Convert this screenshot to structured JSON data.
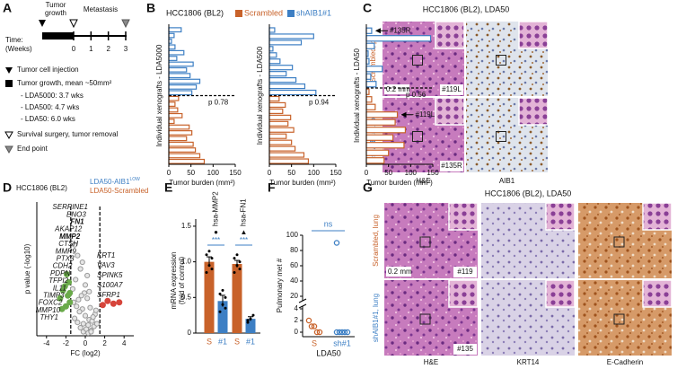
{
  "panel_labels": {
    "a": "A",
    "b": "B",
    "c": "C",
    "d": "D",
    "e": "E",
    "f": "F",
    "g": "G"
  },
  "panel_a": {
    "phase_labels": [
      [
        "Tumor",
        "growth"
      ],
      [
        "Metastasis"
      ]
    ],
    "time_label": [
      "Time:",
      "(Weeks)"
    ],
    "weeks": [
      0,
      1,
      2,
      3
    ],
    "legend": [
      "Tumor cell injection",
      "Tumor growth, mean ~50mm²",
      "- LDA5000: 3.7 wks",
      "- LDA500: 4.7 wks",
      "- LDA50: 6.0 wks",
      "Survival surgery, tumor removal",
      "End point"
    ]
  },
  "panel_c": {
    "title": "HCC1806 (BL2), LDA50",
    "rows": [
      "Scrambled, pT",
      "shAIB1#1, pT"
    ],
    "columns": [
      "H&E",
      "AIB1"
    ],
    "scale_bar": "0.2 mm",
    "sample_ids": [
      "#119L",
      "#135R"
    ]
  },
  "panel_g": {
    "title": "HCC1806 (BL2), LDA50",
    "rows": [
      "Scrambled, lung",
      "shAIB1#1, lung"
    ],
    "columns": [
      "H&E",
      "KRT14",
      "E-Cadherin"
    ],
    "scale_bar": "0.2 mm",
    "sample_ids": [
      "#119",
      "#135"
    ]
  },
  "chart_data": [
    {
      "type": "barh",
      "title": "HCC1806 (BL2)",
      "ylabel": "Individual xenografts - LDA5000",
      "xlabel": "Tumor burden (mm²)",
      "xlim": [
        0,
        150
      ],
      "xticks": [
        0,
        50,
        100,
        150
      ],
      "series": [
        {
          "name": "Scrambled",
          "color": "#c8622a",
          "values": [
            22,
            14,
            20,
            30,
            12,
            46,
            52,
            40,
            55,
            60,
            70,
            80
          ]
        },
        {
          "name": "shAIB1#1",
          "color": "#3d7fc4",
          "values": [
            28,
            12,
            6,
            14,
            34,
            18,
            55,
            40,
            48,
            70,
            62,
            52
          ]
        }
      ],
      "annotation": "p 0.78"
    },
    {
      "type": "barh",
      "ylabel": "Individual xenografts - LDA500",
      "xlabel": "Tumor burden (mm²)",
      "xlim": [
        0,
        150
      ],
      "xticks": [
        0,
        50,
        100,
        150
      ],
      "series": [
        {
          "color": "#c8622a",
          "values": [
            22,
            36,
            30,
            48,
            42,
            55,
            38,
            50,
            58,
            78,
            88
          ]
        },
        {
          "color": "#3d7fc4",
          "values": [
            12,
            100,
            72,
            8,
            16,
            24,
            52,
            38,
            60,
            80,
            105
          ]
        }
      ],
      "annotation": "p 0.94"
    },
    {
      "type": "barh",
      "ylabel": "Individual xenografts - LDA50",
      "xlabel": "Tumor burden (mm²)",
      "xlim": [
        0,
        150
      ],
      "xticks": [
        0,
        50,
        100,
        150
      ],
      "series": [
        {
          "color": "#c8622a",
          "values": [
            6,
            12,
            20,
            70,
            65,
            88,
            60,
            85,
            50,
            40
          ]
        },
        {
          "color": "#3d7fc4",
          "values": [
            12,
            145,
            18,
            4,
            6,
            36,
            10,
            22
          ]
        }
      ],
      "annotation": "p 0.56",
      "callouts": [
        "#135R",
        "#119L"
      ]
    },
    {
      "type": "scatter",
      "title": "HCC1806 (BL2)",
      "legend_labels": [
        {
          "text": "LDA50-AIB1",
          "superscript": "LOW",
          "color": "#3d7fc4"
        },
        {
          "text": "LDA50-Scrambled",
          "color": "#c8622a"
        }
      ],
      "xlabel": "FC (log2)",
      "ylabel": "p value (-log10)",
      "xlim": [
        -5,
        5
      ],
      "xticks": [
        -4,
        -2,
        0,
        2,
        4
      ],
      "ylim": [
        0,
        10
      ],
      "fc_cutoffs": [
        -1.5,
        1.5
      ],
      "series": [
        {
          "color": "#9a9a9a",
          "x": [
            -0.2,
            0.1,
            0.3,
            -0.5,
            0.6,
            -0.8,
            0.9,
            -1.1,
            1.2,
            0.0,
            -0.3,
            0.4,
            -0.6,
            0.7,
            -0.9,
            1.0,
            -1.2,
            0.2,
            -0.1,
            0.5,
            -0.4,
            0.8,
            -0.7,
            1.1,
            -1.3,
            0.3,
            -0.2,
            0.6,
            -1.0,
            0.0,
            -0.5,
            -0.8,
            -0.3,
            0.2,
            -1.1,
            0.4
          ],
          "y": [
            0.3,
            0.5,
            0.8,
            0.6,
            0.4,
            1.0,
            0.7,
            1.3,
            0.9,
            1.5,
            2.0,
            1.2,
            1.8,
            1.1,
            2.2,
            1.6,
            2.5,
            2.8,
            3.2,
            2.1,
            3.0,
            1.4,
            2.7,
            1.9,
            3.5,
            0.2,
            0.9,
            0.3,
            4.2,
            3.8,
            5.0,
            6.0,
            5.5,
            4.5,
            6.8,
            3.3
          ]
        },
        {
          "color": "#6aaa4a",
          "x": [
            -1.6,
            -1.8,
            -2.0,
            -2.3,
            -1.7,
            -2.6,
            -1.9,
            -2.1,
            -1.6,
            -2.4
          ],
          "y": [
            2.5,
            3.0,
            2.2,
            3.4,
            4.0,
            2.8,
            4.6,
            3.7,
            3.2,
            2.0
          ]
        },
        {
          "color": "#d6453b",
          "x": [
            1.8,
            2.3,
            2.9,
            3.5
          ],
          "y": [
            2.3,
            2.6,
            2.4,
            2.5
          ]
        }
      ],
      "genes_down": [
        {
          "name": "SERPINE1"
        },
        {
          "name": "ENO3"
        },
        {
          "name": "FN1",
          "bold": true
        },
        {
          "name": "AKAP12"
        },
        {
          "name": "MMP2",
          "bold": true
        },
        {
          "name": "CTSH"
        },
        {
          "name": "MMP9"
        },
        {
          "name": "PTX3"
        },
        {
          "name": "CDH2"
        },
        {
          "name": "PDPN"
        },
        {
          "name": "TFPI2"
        },
        {
          "name": "IL11"
        },
        {
          "name": "TIMP3"
        },
        {
          "name": "FOXC2"
        },
        {
          "name": "MMP10"
        },
        {
          "name": "THY1"
        }
      ],
      "genes_up": [
        {
          "name": "KRT1"
        },
        {
          "name": "VAV3"
        },
        {
          "name": "SPINK5"
        },
        {
          "name": "S100A7"
        },
        {
          "name": "SFRP1"
        }
      ]
    },
    {
      "type": "bar",
      "categories": [
        "S",
        "#1",
        "S",
        "#1"
      ],
      "colors": [
        "#c8622a",
        "#3d7fc4",
        "#c8622a",
        "#3d7fc4"
      ],
      "values": [
        1.0,
        0.45,
        0.97,
        0.2
      ],
      "errors": [
        0.07,
        0.08,
        0.05,
        0.03
      ],
      "points": [
        [
          0.85,
          0.95,
          1.05,
          1.1,
          1.15,
          0.9
        ],
        [
          0.3,
          0.4,
          0.5,
          0.55,
          0.6,
          0.35
        ],
        [
          0.85,
          0.95,
          1.0,
          1.05,
          1.1,
          0.9
        ],
        [
          0.15,
          0.2,
          0.25,
          0.18
        ]
      ],
      "ylim": [
        0,
        1.6
      ],
      "yticks": [
        0,
        0.5,
        {
          "value": 1,
          "label": "1.0"
        },
        1.5
      ],
      "ylabel": [
        "mRNA expression",
        "(fold of control)"
      ],
      "group_labels": [
        "hsa-MMP2",
        "hsa-FN1"
      ],
      "group_markers": [
        "●",
        "▲"
      ],
      "significance": [
        "***",
        "***"
      ]
    },
    {
      "type": "strip",
      "categories": [
        "S",
        "sh#1"
      ],
      "colors": [
        "#c8622a",
        "#3d7fc4"
      ],
      "xlabel": "LDA50",
      "ylabel": "Pulmonary met #",
      "values": [
        [
          2,
          1,
          1,
          0,
          0
        ],
        [
          0,
          0,
          0,
          0,
          0,
          90
        ]
      ],
      "ylim": [
        0,
        100
      ],
      "y_break": [
        4,
        20
      ],
      "yticks": [
        0,
        2,
        4,
        20,
        40,
        60,
        80,
        100
      ],
      "annotation": "ns"
    }
  ]
}
